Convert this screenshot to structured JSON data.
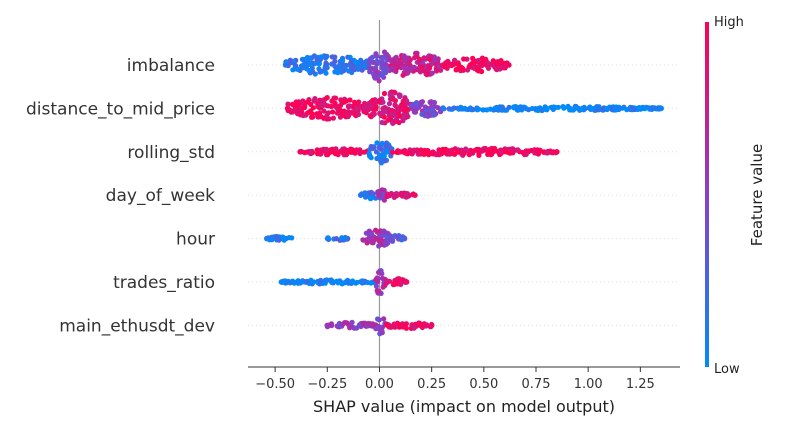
{
  "chart_data": {
    "type": "scatter",
    "subtype": "shap-beeswarm",
    "title": "",
    "xlabel": "SHAP value (impact on model output)",
    "ylabel": "",
    "xlim": [
      -0.63,
      1.44
    ],
    "xticks": [
      -0.5,
      -0.25,
      0.0,
      0.25,
      0.5,
      0.75,
      1.0,
      1.25
    ],
    "xtick_labels": [
      "−0.50",
      "−0.25",
      "0.00",
      "0.25",
      "0.50",
      "0.75",
      "1.00",
      "1.25"
    ],
    "grid": false,
    "colorbar": {
      "title": "Feature value",
      "high_label": "High",
      "low_label": "Low",
      "low_color": "#008bfb",
      "high_color": "#ff0052"
    },
    "features": [
      {
        "name": "imbalance",
        "min": -0.45,
        "max": 0.62,
        "segments": [
          {
            "x0": -0.45,
            "x1": -0.05,
            "width": 0.55,
            "color": 0.15
          },
          {
            "x0": -0.05,
            "x1": 0.05,
            "width": 0.9,
            "color": 0.45
          },
          {
            "x0": 0.05,
            "x1": 0.3,
            "width": 0.7,
            "color": 0.75
          },
          {
            "x0": 0.3,
            "x1": 0.62,
            "width": 0.4,
            "color": 0.95
          }
        ]
      },
      {
        "name": "distance_to_mid_price",
        "min": -0.44,
        "max": 1.35,
        "segments": [
          {
            "x0": -0.44,
            "x1": -0.05,
            "width": 0.6,
            "color": 0.95
          },
          {
            "x0": -0.05,
            "x1": 0.15,
            "width": 0.95,
            "color": 0.85
          },
          {
            "x0": 0.15,
            "x1": 0.3,
            "width": 0.45,
            "color": 0.45
          },
          {
            "x0": 0.3,
            "x1": 1.35,
            "width": 0.12,
            "color": 0.05
          }
        ]
      },
      {
        "name": "rolling_std",
        "min": -0.38,
        "max": 0.85,
        "segments": [
          {
            "x0": -0.38,
            "x1": -0.05,
            "width": 0.18,
            "color": 0.95
          },
          {
            "x0": -0.05,
            "x1": 0.06,
            "width": 0.65,
            "color": 0.15
          },
          {
            "x0": 0.06,
            "x1": 0.85,
            "width": 0.2,
            "color": 0.95
          }
        ]
      },
      {
        "name": "day_of_week",
        "min": -0.09,
        "max": 0.17,
        "segments": [
          {
            "x0": -0.09,
            "x1": 0.02,
            "width": 0.2,
            "color": 0.15
          },
          {
            "x0": -0.01,
            "x1": 0.03,
            "width": 0.45,
            "color": 0.5
          },
          {
            "x0": 0.03,
            "x1": 0.17,
            "width": 0.18,
            "color": 0.9
          }
        ]
      },
      {
        "name": "hour",
        "min": -0.54,
        "max": 0.12,
        "segments": [
          {
            "x0": -0.54,
            "x1": -0.42,
            "width": 0.12,
            "color": 0.1
          },
          {
            "x0": -0.25,
            "x1": -0.15,
            "width": 0.1,
            "color": 0.15
          },
          {
            "x0": -0.08,
            "x1": 0.05,
            "width": 0.55,
            "color": 0.6
          },
          {
            "x0": 0.03,
            "x1": 0.12,
            "width": 0.2,
            "color": 0.3
          }
        ]
      },
      {
        "name": "trades_ratio",
        "min": -0.47,
        "max": 0.13,
        "segments": [
          {
            "x0": -0.47,
            "x1": -0.02,
            "width": 0.12,
            "color": 0.05
          },
          {
            "x0": -0.02,
            "x1": 0.03,
            "width": 0.75,
            "color": 0.6
          },
          {
            "x0": 0.03,
            "x1": 0.13,
            "width": 0.2,
            "color": 0.9
          }
        ]
      },
      {
        "name": "main_ethusdt_dev",
        "min": -0.25,
        "max": 0.25,
        "segments": [
          {
            "x0": -0.25,
            "x1": -0.02,
            "width": 0.18,
            "color": 0.55
          },
          {
            "x0": -0.02,
            "x1": 0.03,
            "width": 0.55,
            "color": 0.5
          },
          {
            "x0": 0.03,
            "x1": 0.25,
            "width": 0.18,
            "color": 0.9
          }
        ]
      }
    ]
  }
}
